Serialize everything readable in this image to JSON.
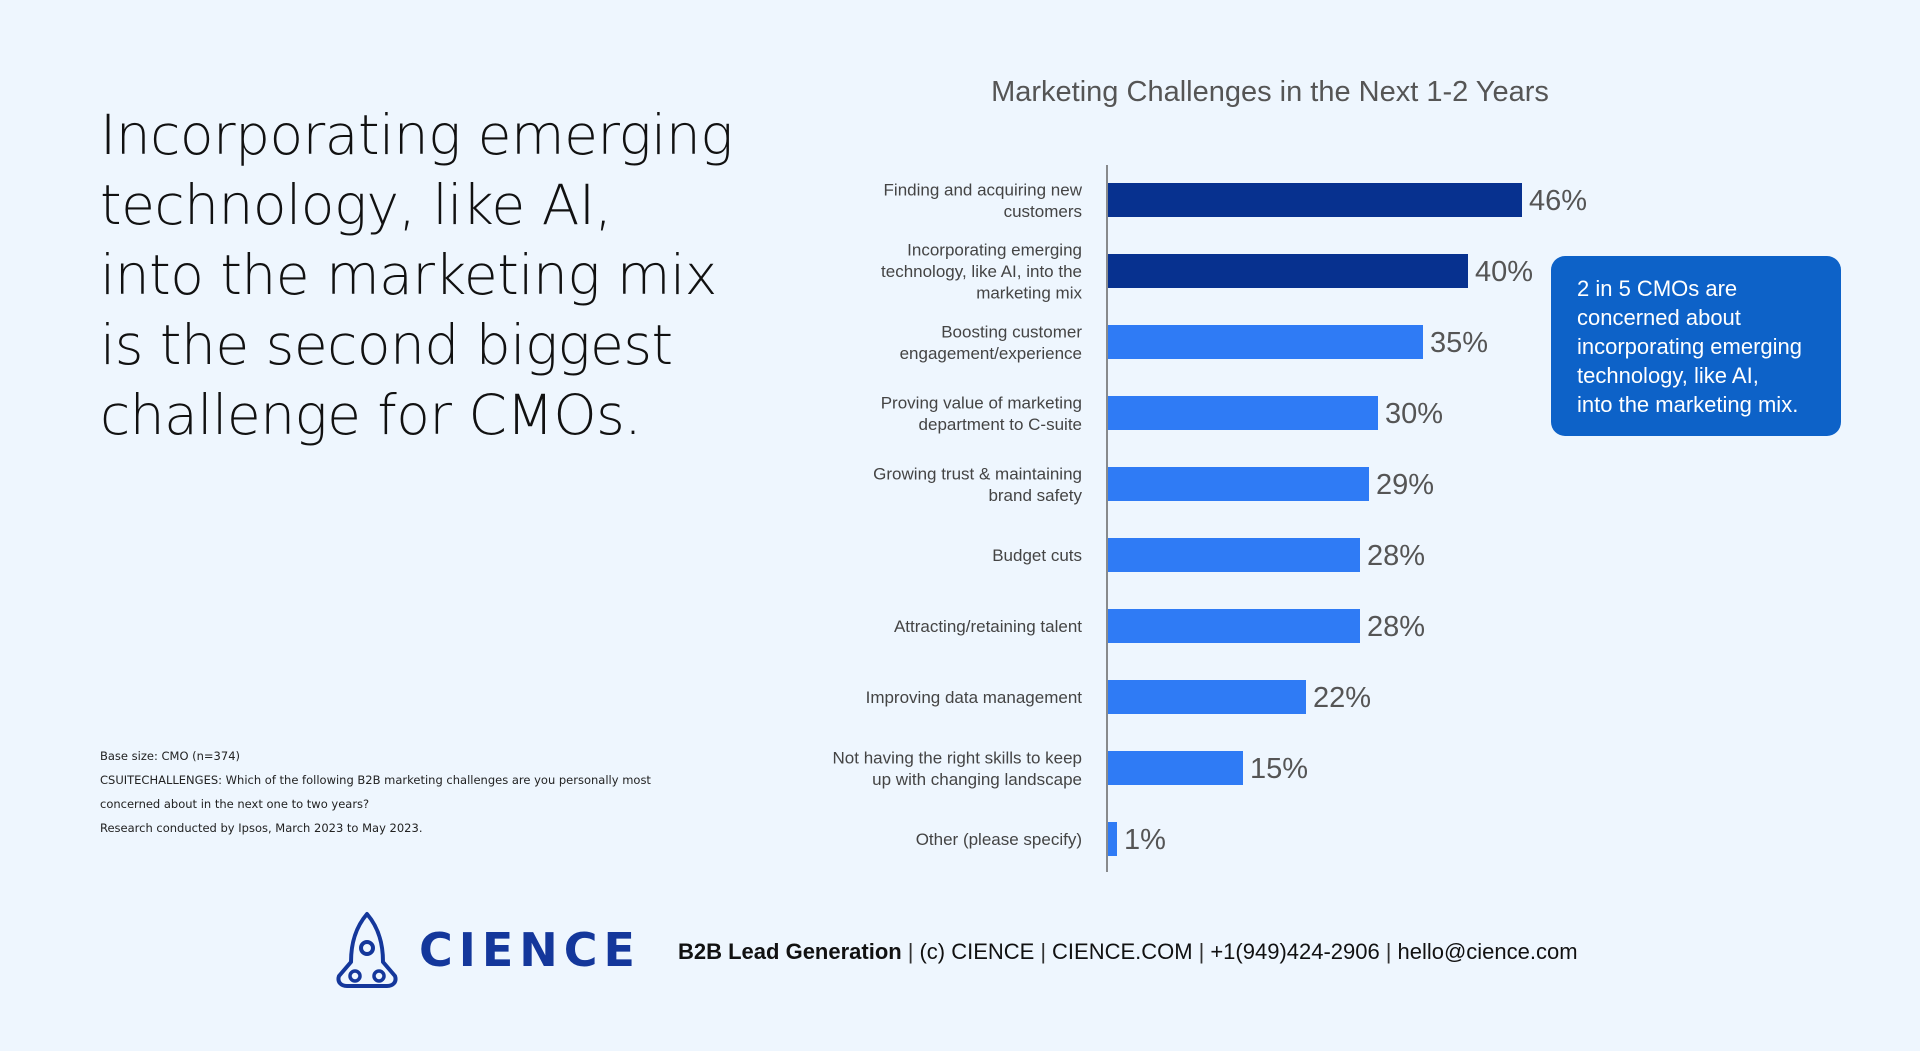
{
  "headline": "Incorporating emerging\ntechnology, like AI,\ninto the marketing mix\nis the second biggest\nchallenge for CMOs.",
  "notes": [
    "Base size: CMO (n=374)",
    "CSUITECHALLENGES: Which of the following B2B marketing challenges are you personally most",
    "concerned about in the next one to two years?",
    "Research conducted by Ipsos, March 2023 to May 2023."
  ],
  "callout": "2 in 5 CMOs  are\nconcerned about\nincorporating emerging\ntechnology, like AI,\ninto the marketing mix.",
  "footer": {
    "brand": "CIENCE",
    "items": [
      "B2B Lead Generation",
      "(c) CIENCE",
      "CIENCE.COM",
      "+1(949)424-2906",
      "hello@cience.com"
    ],
    "logo_icon": "rocket-icon"
  },
  "colors": {
    "background": "#eef6fe",
    "highlight_bar": "#07318f",
    "bar": "#2f7bf5",
    "callout": "#0d62c8",
    "logo": "#14379b"
  },
  "chart_data": {
    "type": "bar",
    "orientation": "horizontal",
    "title": "Marketing Challenges in the Next 1-2 Years",
    "categories": [
      "Finding and acquiring new\ncustomers",
      "Incorporating emerging\ntechnology, like AI, into the\nmarketing mix",
      "Boosting customer\nengagement/experience",
      "Proving value of marketing\ndepartment to C-suite",
      "Growing trust & maintaining\nbrand safety",
      "Budget cuts",
      "Attracting/retaining talent",
      "Improving data management",
      "Not having the right skills to keep\nup with changing landscape",
      "Other (please specify)"
    ],
    "values": [
      46,
      40,
      35,
      30,
      29,
      28,
      28,
      22,
      15,
      1
    ],
    "data_labels": [
      "46%",
      "40%",
      "35%",
      "30%",
      "29%",
      "28%",
      "28%",
      "22%",
      "15%",
      "1%"
    ],
    "highlighted": [
      true,
      true,
      false,
      false,
      false,
      false,
      false,
      false,
      false,
      false
    ],
    "unit": "%",
    "grid": false,
    "legend": "none"
  }
}
